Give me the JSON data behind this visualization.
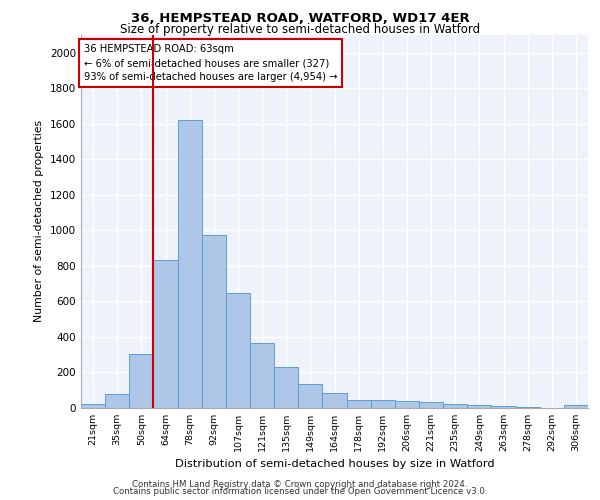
{
  "title1": "36, HEMPSTEAD ROAD, WATFORD, WD17 4ER",
  "title2": "Size of property relative to semi-detached houses in Watford",
  "xlabel": "Distribution of semi-detached houses by size in Watford",
  "ylabel": "Number of semi-detached properties",
  "footer1": "Contains HM Land Registry data © Crown copyright and database right 2024.",
  "footer2": "Contains public sector information licensed under the Open Government Licence v3.0.",
  "annotation_line1": "36 HEMPSTEAD ROAD: 63sqm",
  "annotation_line2": "← 6% of semi-detached houses are smaller (327)",
  "annotation_line3": "93% of semi-detached houses are larger (4,954) →",
  "bar_color": "#aec6e8",
  "bar_edge_color": "#5a9fd4",
  "vline_color": "#cc0000",
  "categories": [
    "21sqm",
    "35sqm",
    "50sqm",
    "64sqm",
    "78sqm",
    "92sqm",
    "107sqm",
    "121sqm",
    "135sqm",
    "149sqm",
    "164sqm",
    "178sqm",
    "192sqm",
    "206sqm",
    "221sqm",
    "235sqm",
    "249sqm",
    "263sqm",
    "278sqm",
    "292sqm",
    "306sqm"
  ],
  "values": [
    20,
    75,
    300,
    830,
    1620,
    975,
    645,
    365,
    230,
    135,
    80,
    45,
    40,
    35,
    30,
    20,
    12,
    8,
    5,
    0,
    12
  ],
  "ylim": [
    0,
    2100
  ],
  "yticks": [
    0,
    200,
    400,
    600,
    800,
    1000,
    1200,
    1400,
    1600,
    1800,
    2000
  ],
  "background_color": "#eef2fa",
  "vline_bin_index": 3
}
